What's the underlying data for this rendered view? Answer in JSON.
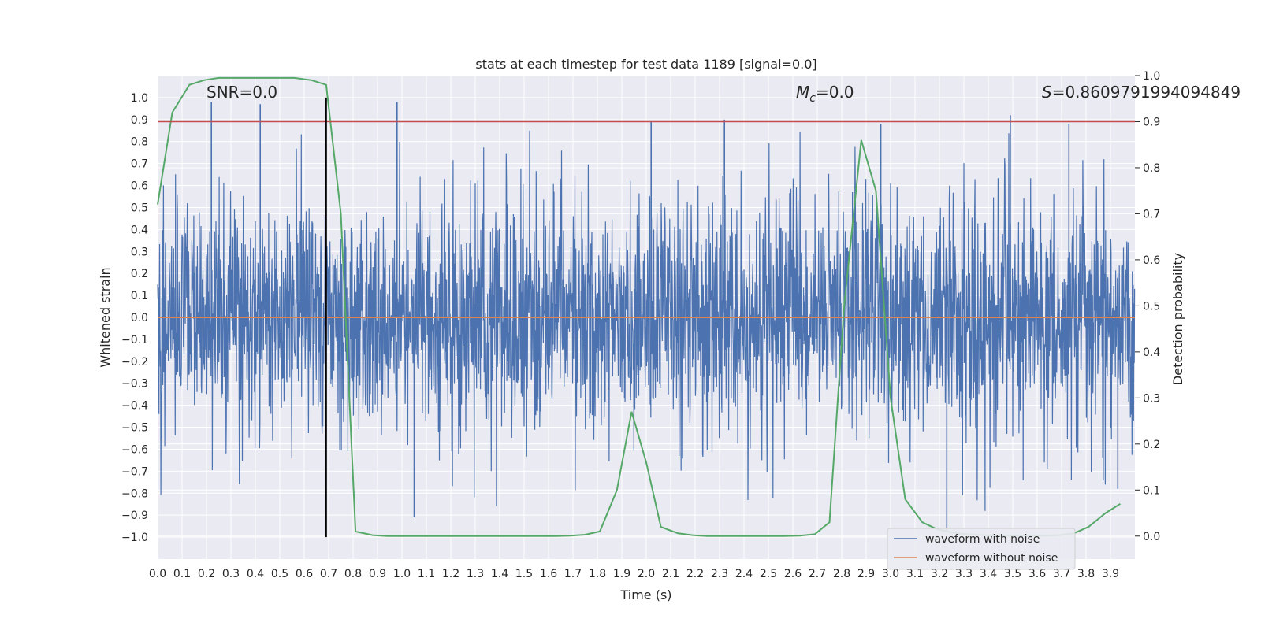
{
  "chart_data": {
    "type": "line",
    "title": "stats at each timestep for test data 1189 [signal=0.0]",
    "xlabel": "Time (s)",
    "ylabel": "Whitened strain",
    "y2label": "Detection probability",
    "xlim": [
      0.0,
      4.0
    ],
    "ylim": [
      -1.1,
      1.1
    ],
    "y2lim": [
      -0.05,
      1.0
    ],
    "xticks": [
      "0.0",
      "0.1",
      "0.2",
      "0.3",
      "0.4",
      "0.5",
      "0.6",
      "0.7",
      "0.8",
      "0.9",
      "1.0",
      "1.1",
      "1.2",
      "1.3",
      "1.4",
      "1.5",
      "1.6",
      "1.7",
      "1.8",
      "1.9",
      "2.0",
      "2.1",
      "2.2",
      "2.3",
      "2.4",
      "2.5",
      "2.6",
      "2.7",
      "2.8",
      "2.9",
      "3.0",
      "3.1",
      "3.2",
      "3.3",
      "3.4",
      "3.5",
      "3.6",
      "3.7",
      "3.8",
      "3.9"
    ],
    "yticks": [
      "1.0",
      "0.9",
      "0.8",
      "0.7",
      "0.6",
      "0.5",
      "0.4",
      "0.3",
      "0.2",
      "0.1",
      "0.0",
      "-0.1",
      "-0.2",
      "-0.3",
      "-0.4",
      "-0.5",
      "-0.6",
      "-0.7",
      "-0.8",
      "-0.9",
      "-1.0"
    ],
    "y2ticks": [
      "1.0",
      "0.9",
      "0.8",
      "0.7",
      "0.6",
      "0.5",
      "0.4",
      "0.3",
      "0.2",
      "0.1",
      "0.0"
    ],
    "grid": true,
    "legend_position": "bottom-right",
    "annotations": {
      "snr": "SNR=0.0",
      "mc_symbol": "M",
      "mc_sub": "c",
      "mc_value": "=0.0",
      "s_symbol": "S",
      "s_value": "=0.8609791994094849"
    },
    "series": [
      {
        "name": "waveform with noise",
        "axis": "left",
        "color": "#4c72b0",
        "sample_rate": 2048,
        "amplitude_envelope": 1.0,
        "notable_peaks": [
          {
            "x": 0.22,
            "y": 0.98
          },
          {
            "x": 0.42,
            "y": 0.97
          },
          {
            "x": 0.98,
            "y": 0.98
          },
          {
            "x": 2.02,
            "y": 0.89
          },
          {
            "x": 2.32,
            "y": 0.9
          },
          {
            "x": 2.96,
            "y": 0.88
          },
          {
            "x": 3.49,
            "y": 0.92
          },
          {
            "x": 3.73,
            "y": 0.88
          },
          {
            "x": 1.05,
            "y": -0.91
          },
          {
            "x": 3.23,
            "y": -0.97
          },
          {
            "x": 3.93,
            "y": -0.78
          }
        ]
      },
      {
        "name": "waveform without noise",
        "axis": "left",
        "color": "#dd8452",
        "x": [
          0.0,
          4.0
        ],
        "y": [
          0.0,
          0.0
        ]
      },
      {
        "name": "",
        "axis": "right",
        "color": "#55a868",
        "x": [
          0.0,
          0.06,
          0.13,
          0.19,
          0.25,
          0.31,
          0.38,
          0.44,
          0.5,
          0.56,
          0.63,
          0.69,
          0.75,
          0.81,
          0.88,
          0.94,
          1.0,
          1.06,
          1.13,
          1.19,
          1.25,
          1.31,
          1.38,
          1.44,
          1.5,
          1.56,
          1.63,
          1.69,
          1.75,
          1.81,
          1.88,
          1.94,
          2.0,
          2.06,
          2.13,
          2.19,
          2.25,
          2.31,
          2.38,
          2.44,
          2.5,
          2.56,
          2.63,
          2.69,
          2.75,
          2.81,
          2.88,
          2.94,
          3.0,
          3.06,
          3.13,
          3.19,
          3.25,
          3.31,
          3.38,
          3.44,
          3.5,
          3.56,
          3.63,
          3.69,
          3.75,
          3.81,
          3.88,
          3.94
        ],
        "y": [
          0.72,
          0.92,
          0.98,
          0.99,
          0.995,
          0.995,
          0.995,
          0.995,
          0.995,
          0.995,
          0.99,
          0.98,
          0.7,
          0.01,
          0.002,
          0.0,
          0.0,
          0.0,
          0.0,
          0.0,
          0.0,
          0.0,
          0.0,
          0.0,
          0.0,
          0.0,
          0.0,
          0.001,
          0.003,
          0.01,
          0.1,
          0.27,
          0.16,
          0.02,
          0.006,
          0.002,
          0.0,
          0.0,
          0.0,
          0.0,
          0.0,
          0.0,
          0.001,
          0.004,
          0.03,
          0.5,
          0.86,
          0.75,
          0.3,
          0.08,
          0.03,
          0.015,
          0.008,
          0.004,
          0.002,
          0.001,
          0.001,
          0.001,
          0.001,
          0.002,
          0.006,
          0.02,
          0.05,
          0.07
        ]
      }
    ],
    "hlines": [
      {
        "axis": "right",
        "y": 0.9,
        "color": "#c44e52"
      }
    ],
    "vlines": [
      {
        "axis": "left",
        "x": 0.69,
        "ymin": -1.0,
        "ymax": 1.0,
        "color": "#000000"
      }
    ],
    "legend": [
      "waveform with noise",
      "waveform without noise"
    ]
  }
}
